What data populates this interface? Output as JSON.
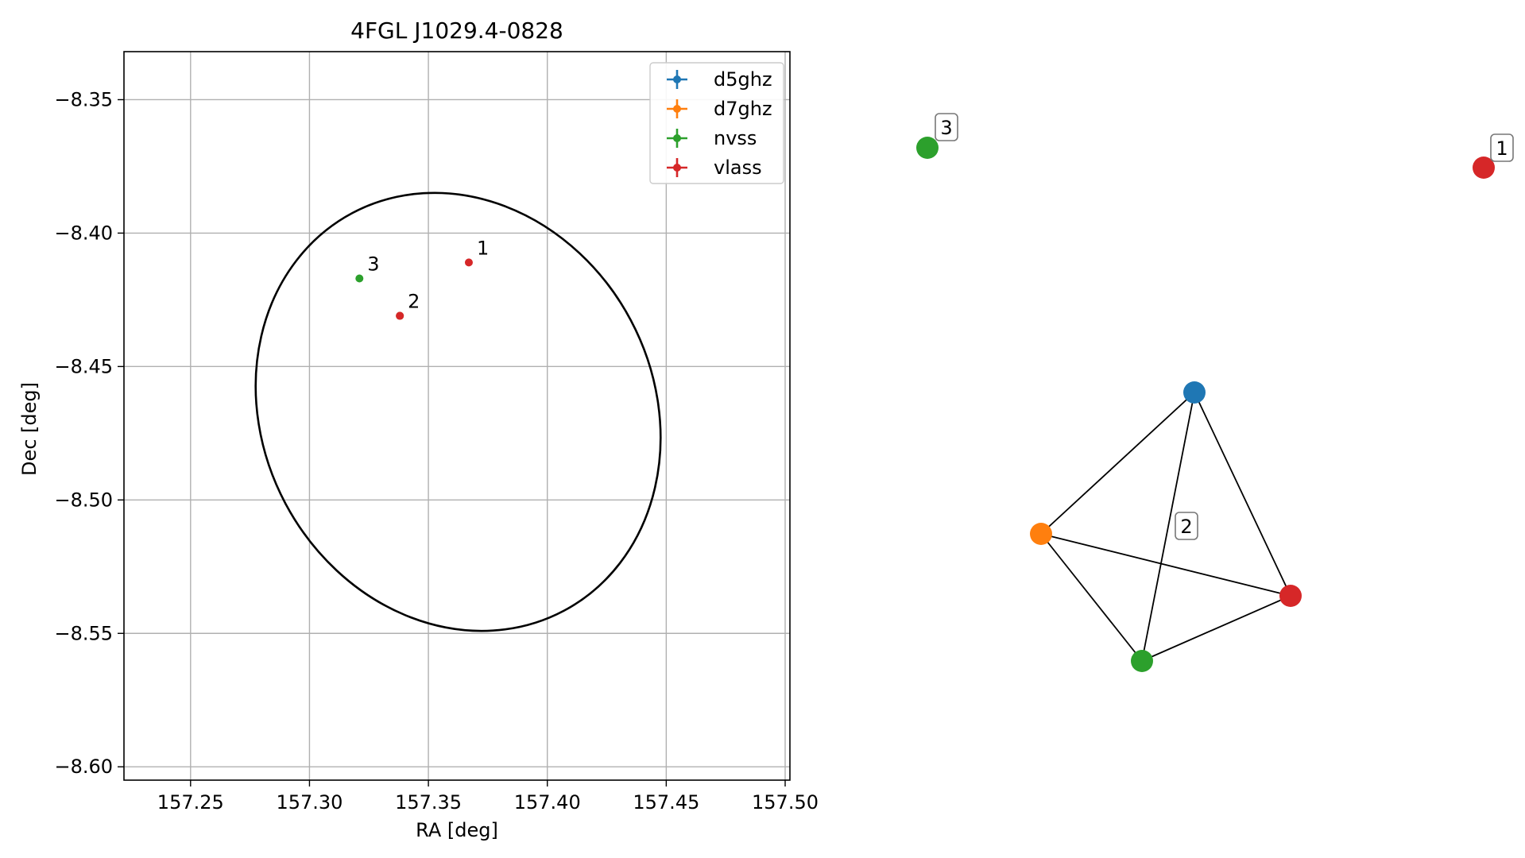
{
  "chart_data": [
    {
      "type": "scatter",
      "title": "4FGL J1029.4-0828",
      "xlabel": "RA [deg]",
      "ylabel": "Dec [deg]",
      "xlim": [
        157.222,
        157.502
      ],
      "ylim": [
        -8.605,
        -8.332
      ],
      "xticks": [
        157.25,
        157.3,
        157.35,
        157.4,
        157.45,
        157.5
      ],
      "xtick_labels": [
        "157.25",
        "157.30",
        "157.35",
        "157.40",
        "157.45",
        "157.50"
      ],
      "yticks": [
        -8.35,
        -8.4,
        -8.45,
        -8.5,
        -8.55,
        -8.6
      ],
      "ytick_labels": [
        "−8.35",
        "−8.40",
        "−8.45",
        "−8.50",
        "−8.55",
        "−8.60"
      ],
      "grid": true,
      "legend_position": "top-right",
      "series": [
        {
          "name": "d5ghz",
          "color": "#1f77b4",
          "points": [
            [
              157.338,
              -8.431
            ]
          ]
        },
        {
          "name": "d7ghz",
          "color": "#ff7f0e",
          "points": [
            [
              157.338,
              -8.431
            ]
          ]
        },
        {
          "name": "nvss",
          "color": "#2ca02c",
          "points": [
            [
              157.321,
              -8.417
            ]
          ]
        },
        {
          "name": "vlass",
          "color": "#d62728",
          "points": [
            [
              157.367,
              -8.411
            ],
            [
              157.338,
              -8.431
            ]
          ]
        }
      ],
      "annotations": [
        {
          "text": "1",
          "x": 157.367,
          "y": -8.411
        },
        {
          "text": "2",
          "x": 157.338,
          "y": -8.431
        },
        {
          "text": "3",
          "x": 157.321,
          "y": -8.417
        }
      ],
      "ellipse": {
        "center": [
          157.3625,
          -8.467
        ],
        "width_deg": 0.1644,
        "height_deg": 0.1688,
        "color": "#000000",
        "note_units": "axis data units (ellipse spans RA 157.280-157.445, Dec -8.551 to -8.383)"
      }
    },
    {
      "type": "graph",
      "nodes": [
        {
          "id": "d5ghz",
          "color": "#1f77b4",
          "group": "2"
        },
        {
          "id": "d7ghz",
          "color": "#ff7f0e",
          "group": "2"
        },
        {
          "id": "nvss",
          "color": "#2ca02c",
          "group": "2"
        },
        {
          "id": "vlass",
          "color": "#d62728",
          "group": "2"
        },
        {
          "id": "nvss_3",
          "color": "#2ca02c",
          "group": "3"
        },
        {
          "id": "vlass_1",
          "color": "#d62728",
          "group": "1"
        }
      ],
      "edges": [
        [
          "d5ghz",
          "d7ghz"
        ],
        [
          "d5ghz",
          "nvss"
        ],
        [
          "d5ghz",
          "vlass"
        ],
        [
          "d7ghz",
          "nvss"
        ],
        [
          "d7ghz",
          "vlass"
        ],
        [
          "nvss",
          "vlass"
        ]
      ],
      "group_labels": [
        "1",
        "2",
        "3"
      ]
    }
  ]
}
